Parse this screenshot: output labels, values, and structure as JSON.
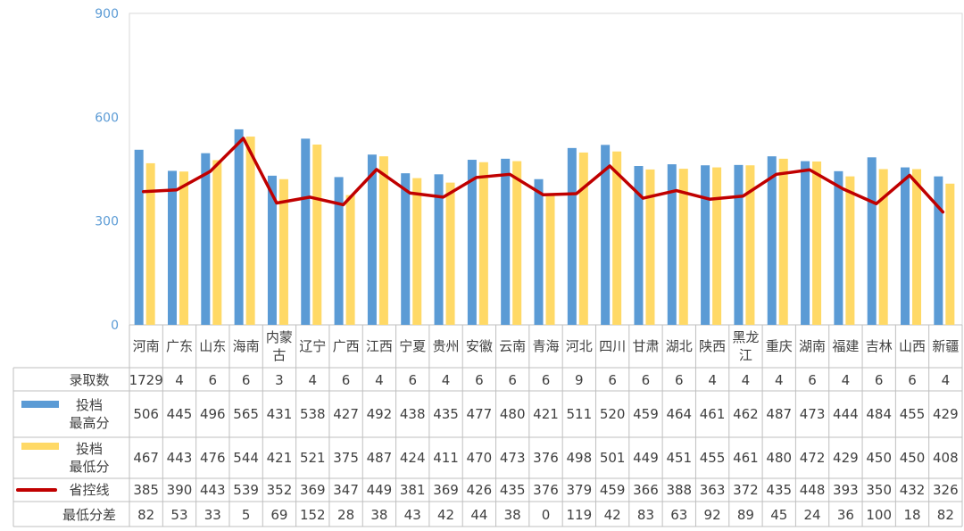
{
  "chart_data": {
    "type": "bar",
    "ylim": [
      0,
      900
    ],
    "yticks": [
      "0",
      "300",
      "600",
      "900"
    ],
    "categories": [
      [
        "河南"
      ],
      [
        "广东"
      ],
      [
        "山东"
      ],
      [
        "海南"
      ],
      [
        "内蒙",
        "古"
      ],
      [
        "辽宁"
      ],
      [
        "广西"
      ],
      [
        "江西"
      ],
      [
        "宁夏"
      ],
      [
        "贵州"
      ],
      [
        "安徽"
      ],
      [
        "云南"
      ],
      [
        "青海"
      ],
      [
        "河北"
      ],
      [
        "四川"
      ],
      [
        "甘肃"
      ],
      [
        "湖北"
      ],
      [
        "陕西"
      ],
      [
        "黑龙",
        "江"
      ],
      [
        "重庆"
      ],
      [
        "湖南"
      ],
      [
        "福建"
      ],
      [
        "吉林"
      ],
      [
        "山西"
      ],
      [
        "新疆"
      ]
    ],
    "series": [
      {
        "name": [
          "投档",
          "最高分"
        ],
        "kind": "bar",
        "color": "#5B9BD5",
        "values": [
          506,
          445,
          496,
          565,
          431,
          538,
          427,
          492,
          438,
          435,
          477,
          480,
          421,
          511,
          520,
          459,
          464,
          461,
          462,
          487,
          473,
          444,
          484,
          455,
          429
        ]
      },
      {
        "name": [
          "投档",
          "最低分"
        ],
        "kind": "bar",
        "color": "#FFD966",
        "values": [
          467,
          443,
          476,
          544,
          421,
          521,
          375,
          487,
          424,
          411,
          470,
          473,
          376,
          498,
          501,
          449,
          451,
          455,
          461,
          480,
          472,
          429,
          450,
          450,
          408
        ]
      },
      {
        "name": [
          "省控线"
        ],
        "kind": "line",
        "color": "#C00000",
        "values": [
          385,
          390,
          443,
          539,
          352,
          369,
          347,
          449,
          381,
          369,
          426,
          435,
          376,
          379,
          459,
          366,
          388,
          363,
          372,
          435,
          448,
          393,
          350,
          432,
          326
        ]
      }
    ],
    "table_rows": [
      {
        "label": "录取数",
        "values": [
          "1729",
          "4",
          "6",
          "6",
          "3",
          "4",
          "6",
          "4",
          "6",
          "4",
          "6",
          "6",
          "6",
          "9",
          "6",
          "6",
          "6",
          "4",
          "4",
          "4",
          "6",
          "4",
          "6",
          "6",
          "4"
        ]
      },
      {
        "label": "最低分差",
        "values": [
          "82",
          "53",
          "33",
          "5",
          "69",
          "152",
          "28",
          "38",
          "43",
          "42",
          "44",
          "38",
          "0",
          "119",
          "42",
          "83",
          "63",
          "92",
          "89",
          "45",
          "24",
          "36",
          "100",
          "18",
          "82"
        ]
      }
    ]
  }
}
